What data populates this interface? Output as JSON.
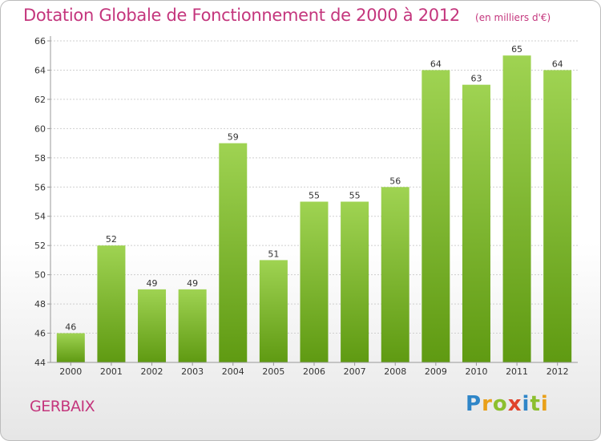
{
  "title": "Dotation Globale de Fonctionnement de 2000 à 2012",
  "subtitle": "(en milliers d'€)",
  "city": "GERBAIX",
  "logo": {
    "text": "Proxiti",
    "icon": "proxiti-logo"
  },
  "colors": {
    "bar_top": "#9fd352",
    "bar_bottom": "#5f9a12",
    "title": "#c4367d",
    "grid": "#cfcfcf"
  },
  "chart_data": {
    "type": "bar",
    "categories": [
      "2000",
      "2001",
      "2002",
      "2003",
      "2004",
      "2005",
      "2006",
      "2007",
      "2008",
      "2009",
      "2010",
      "2011",
      "2012"
    ],
    "values": [
      46,
      52,
      49,
      49,
      59,
      51,
      55,
      55,
      56,
      64,
      63,
      65,
      64
    ],
    "ylim": [
      44,
      66
    ],
    "yticks": [
      44,
      46,
      48,
      50,
      52,
      54,
      56,
      58,
      60,
      62,
      64,
      66
    ],
    "grid": true,
    "xlabel": "",
    "ylabel": ""
  }
}
